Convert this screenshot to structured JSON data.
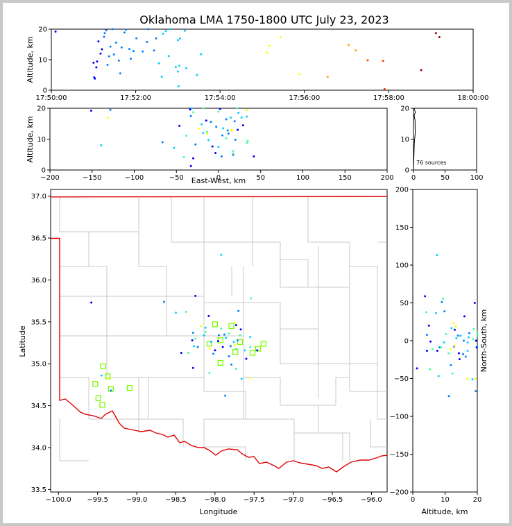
{
  "title": "Oklahoma LMA 1750-1800 UTC July 23, 2023",
  "colors": {
    "frame": "#c8c8c8",
    "state_border": "#e00000",
    "county_lines": "#c8c8c8",
    "station_marker": "#7cfc00",
    "time_scale": [
      "#0000ff",
      "#0080ff",
      "#00d0ff",
      "#40ffa0",
      "#ffff00",
      "#ffa000",
      "#ff4000",
      "#a00000"
    ]
  },
  "chart_data": [
    {
      "panel": "time-altitude",
      "type": "scatter",
      "xlabel": "",
      "ylabel": "Altitude, km",
      "xlim": [
        "17:50:00",
        "18:00:00"
      ],
      "ylim": [
        0,
        20
      ],
      "xticks": [
        "17:50:00",
        "17:52:00",
        "17:54:00",
        "17:56:00",
        "17:58:00",
        "18:00:00"
      ],
      "yticks": [
        "0",
        "10",
        "20"
      ],
      "points": [
        {
          "t": "17:50:06",
          "alt": 19.2
        },
        {
          "t": "17:51:00",
          "alt": 9.0
        },
        {
          "t": "17:51:01",
          "alt": 4.2
        },
        {
          "t": "17:51:02",
          "alt": 3.8
        },
        {
          "t": "17:51:04",
          "alt": 7.5
        },
        {
          "t": "17:51:05",
          "alt": 9.4
        },
        {
          "t": "17:51:07",
          "alt": 16.0
        },
        {
          "t": "17:51:10",
          "alt": 12.0
        },
        {
          "t": "17:51:12",
          "alt": 13.4
        },
        {
          "t": "17:51:15",
          "alt": 17.5
        },
        {
          "t": "17:51:16",
          "alt": 18.7
        },
        {
          "t": "17:51:18",
          "alt": 19.6
        },
        {
          "t": "17:51:20",
          "alt": 8.3
        },
        {
          "t": "17:51:22",
          "alt": 11.1
        },
        {
          "t": "17:51:24",
          "alt": 14.3
        },
        {
          "t": "17:51:27",
          "alt": 20.0
        },
        {
          "t": "17:51:29",
          "alt": 11.7
        },
        {
          "t": "17:51:32",
          "alt": 15.6
        },
        {
          "t": "17:51:36",
          "alt": 9.7
        },
        {
          "t": "17:51:38",
          "alt": 5.5
        },
        {
          "t": "17:51:40",
          "alt": 14.0
        },
        {
          "t": "17:51:44",
          "alt": 18.9
        },
        {
          "t": "17:51:46",
          "alt": 19.8
        },
        {
          "t": "17:51:51",
          "alt": 13.5
        },
        {
          "t": "17:51:53",
          "alt": 10.3
        },
        {
          "t": "17:51:57",
          "alt": 12.8
        },
        {
          "t": "17:52:01",
          "alt": 17.0
        },
        {
          "t": "17:52:10",
          "alt": 12.7
        },
        {
          "t": "17:52:16",
          "alt": 15.8
        },
        {
          "t": "17:52:18",
          "alt": 20.0
        },
        {
          "t": "17:52:26",
          "alt": 13.0
        },
        {
          "t": "17:52:29",
          "alt": 17.0
        },
        {
          "t": "17:52:33",
          "alt": 8.8
        },
        {
          "t": "17:52:37",
          "alt": 4.4
        },
        {
          "t": "17:52:39",
          "alt": 18.5
        },
        {
          "t": "17:52:43",
          "alt": 19.4
        },
        {
          "t": "17:52:47",
          "alt": 11.2
        },
        {
          "t": "17:52:49",
          "alt": 20.0
        },
        {
          "t": "17:52:57",
          "alt": 7.6
        },
        {
          "t": "17:53:00",
          "alt": 16.4
        },
        {
          "t": "17:53:00",
          "alt": 6.1
        },
        {
          "t": "17:53:01",
          "alt": 1.3
        },
        {
          "t": "17:53:02",
          "alt": 8.0
        },
        {
          "t": "17:53:03",
          "alt": 16.9
        },
        {
          "t": "17:53:10",
          "alt": 19.5
        },
        {
          "t": "17:53:12",
          "alt": 7.2
        },
        {
          "t": "17:53:27",
          "alt": 5.0
        },
        {
          "t": "17:53:33",
          "alt": 11.8
        },
        {
          "t": "17:55:07",
          "alt": 12.3
        },
        {
          "t": "17:55:10",
          "alt": 14.5
        },
        {
          "t": "17:55:26",
          "alt": 17.3
        },
        {
          "t": "17:55:53",
          "alt": 5.3
        },
        {
          "t": "17:56:33",
          "alt": 4.4
        },
        {
          "t": "17:57:03",
          "alt": 14.8
        },
        {
          "t": "17:57:13",
          "alt": 13.0
        },
        {
          "t": "17:57:30",
          "alt": 9.8
        },
        {
          "t": "17:57:52",
          "alt": 9.6
        },
        {
          "t": "17:57:54",
          "alt": 0.4
        },
        {
          "t": "17:58:46",
          "alt": 6.6
        },
        {
          "t": "17:59:07",
          "alt": 18.7
        },
        {
          "t": "17:59:12",
          "alt": 17.4
        }
      ]
    },
    {
      "panel": "east-west-altitude",
      "type": "scatter",
      "xlabel": "East-West, km",
      "ylabel": "Altitude, km",
      "xlim": [
        -200,
        200
      ],
      "ylim": [
        0,
        20
      ],
      "xticks": [
        "−200",
        "−150",
        "−100",
        "−50",
        "0",
        "50",
        "100",
        "150",
        "200"
      ],
      "yticks": [
        "0",
        "10",
        "20"
      ]
    },
    {
      "panel": "altitude-histogram",
      "type": "line",
      "xlim": [
        0,
        100
      ],
      "ylim": [
        0,
        20
      ],
      "xticks": [
        "0",
        "50",
        "100"
      ],
      "yticks": [
        "0",
        "10",
        "20"
      ],
      "annotation": "76 sources"
    },
    {
      "panel": "plan-view",
      "type": "scatter",
      "xlabel": "Longitude",
      "ylabel": "Latitude",
      "xlim": [
        -100.1,
        -95.8
      ],
      "ylim": [
        33.47,
        37.08
      ],
      "xticks": [
        "−100.0",
        "−99.5",
        "−99.0",
        "−98.5",
        "−98.0",
        "−97.5",
        "−97.0",
        "−96.5",
        "−96.0"
      ],
      "yticks": [
        "33.5",
        "34.0",
        "34.5",
        "35.0",
        "35.5",
        "36.0",
        "36.5",
        "37.0"
      ],
      "stations": [
        {
          "lon": -99.43,
          "lat": 34.97
        },
        {
          "lon": -99.37,
          "lat": 34.85
        },
        {
          "lon": -99.53,
          "lat": 34.76
        },
        {
          "lon": -99.33,
          "lat": 34.7
        },
        {
          "lon": -99.49,
          "lat": 34.59
        },
        {
          "lon": -99.44,
          "lat": 34.51
        },
        {
          "lon": -99.09,
          "lat": 34.71
        },
        {
          "lon": -98.07,
          "lat": 35.24
        },
        {
          "lon": -98.0,
          "lat": 35.47
        },
        {
          "lon": -97.93,
          "lat": 35.28
        },
        {
          "lon": -97.93,
          "lat": 35.01
        },
        {
          "lon": -97.79,
          "lat": 35.45
        },
        {
          "lon": -97.74,
          "lat": 35.14
        },
        {
          "lon": -97.68,
          "lat": 35.26
        },
        {
          "lon": -97.52,
          "lat": 35.13
        },
        {
          "lon": -97.45,
          "lat": 35.18
        },
        {
          "lon": -97.38,
          "lat": 35.24
        }
      ],
      "sources": [
        {
          "lon": -99.58,
          "lat": 35.73
        },
        {
          "lon": -98.65,
          "lat": 35.74
        },
        {
          "lon": -98.37,
          "lat": 35.62
        },
        {
          "lon": -98.25,
          "lat": 35.81
        },
        {
          "lon": -97.92,
          "lat": 36.3
        },
        {
          "lon": -97.54,
          "lat": 35.78
        },
        {
          "lon": -98.08,
          "lat": 35.57
        },
        {
          "lon": -98.12,
          "lat": 35.43
        },
        {
          "lon": -98.18,
          "lat": 35.45
        },
        {
          "lon": -98.28,
          "lat": 35.37
        },
        {
          "lon": -98.25,
          "lat": 35.3
        },
        {
          "lon": -98.29,
          "lat": 35.28
        },
        {
          "lon": -98.22,
          "lat": 35.2
        },
        {
          "lon": -98.34,
          "lat": 35.13
        },
        {
          "lon": -98.43,
          "lat": 35.13
        },
        {
          "lon": -98.27,
          "lat": 35.21
        },
        {
          "lon": -98.07,
          "lat": 35.18
        },
        {
          "lon": -98.02,
          "lat": 35.12
        },
        {
          "lon": -98.05,
          "lat": 35.26
        },
        {
          "lon": -97.96,
          "lat": 35.27
        },
        {
          "lon": -97.95,
          "lat": 35.34
        },
        {
          "lon": -97.92,
          "lat": 35.42
        },
        {
          "lon": -97.9,
          "lat": 35.2
        },
        {
          "lon": -97.86,
          "lat": 35.31
        },
        {
          "lon": -97.82,
          "lat": 35.36
        },
        {
          "lon": -97.8,
          "lat": 35.21
        },
        {
          "lon": -97.76,
          "lat": 35.26
        },
        {
          "lon": -97.75,
          "lat": 35.49
        },
        {
          "lon": -97.71,
          "lat": 35.28
        },
        {
          "lon": -97.68,
          "lat": 35.34
        },
        {
          "lon": -97.67,
          "lat": 35.41
        },
        {
          "lon": -97.62,
          "lat": 35.16
        },
        {
          "lon": -97.55,
          "lat": 35.2
        },
        {
          "lon": -97.46,
          "lat": 35.16
        },
        {
          "lon": -97.66,
          "lat": 34.82
        },
        {
          "lon": -97.55,
          "lat": 34.83
        },
        {
          "lon": -97.87,
          "lat": 34.62
        },
        {
          "lon": -98.12,
          "lat": 35.38
        },
        {
          "lon": -98.0,
          "lat": 35.16
        },
        {
          "lon": -97.82,
          "lat": 35.09
        },
        {
          "lon": -97.73,
          "lat": 35.18
        },
        {
          "lon": -98.28,
          "lat": 34.95
        },
        {
          "lon": -99.45,
          "lat": 34.86
        },
        {
          "lon": -99.36,
          "lat": 34.83
        },
        {
          "lon": -99.33,
          "lat": 34.68
        },
        {
          "lon": -98.5,
          "lat": 35.61
        },
        {
          "lon": -97.73,
          "lat": 35.46
        },
        {
          "lon": -97.79,
          "lat": 34.99
        },
        {
          "lon": -98.07,
          "lat": 34.89
        },
        {
          "lon": -97.6,
          "lat": 35.06
        },
        {
          "lon": -97.55,
          "lat": 35.32
        },
        {
          "lon": -97.73,
          "lat": 34.94
        },
        {
          "lon": -97.88,
          "lat": 35.35
        },
        {
          "lon": -98.14,
          "lat": 35.34
        },
        {
          "lon": -97.75,
          "lat": 35.22
        },
        {
          "lon": -97.7,
          "lat": 35.63
        }
      ]
    },
    {
      "panel": "altitude-north-south",
      "type": "scatter",
      "xlabel": "Altitude, km",
      "ylabel": "North-South, km",
      "xlim": [
        0,
        20
      ],
      "ylim": [
        -200,
        200
      ],
      "xticks": [
        "0",
        "10",
        "20"
      ],
      "yticks": [
        "−200",
        "−150",
        "−100",
        "−50",
        "0",
        "50",
        "100",
        "150",
        "200"
      ]
    }
  ]
}
